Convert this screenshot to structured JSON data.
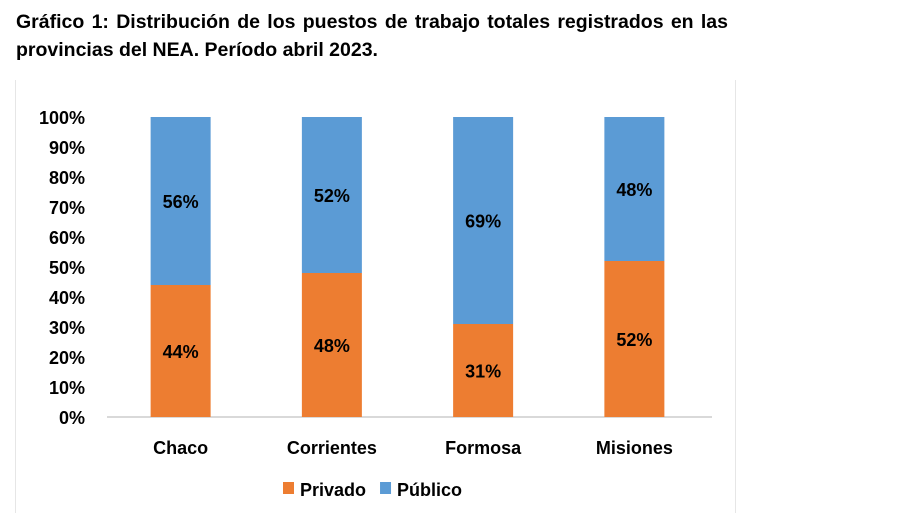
{
  "chart_data": {
    "type": "bar",
    "stacked": true,
    "title": "Gráfico 1: Distribución de los puestos de trabajo totales registrados en las provincias del NEA. Período abril 2023.",
    "categories": [
      "Chaco",
      "Corrientes",
      "Formosa",
      "Misiones"
    ],
    "series": [
      {
        "name": "Privado",
        "color": "#ED7D31",
        "values": [
          44,
          48,
          31,
          52
        ],
        "labels": [
          "44%",
          "48%",
          "31%",
          "52%"
        ]
      },
      {
        "name": "Público",
        "color": "#5B9BD5",
        "values": [
          56,
          52,
          69,
          48
        ],
        "labels": [
          "56%",
          "52%",
          "69%",
          "48%"
        ]
      }
    ],
    "ylim": [
      0,
      100
    ],
    "yticks": [
      "0%",
      "10%",
      "20%",
      "30%",
      "40%",
      "50%",
      "60%",
      "70%",
      "80%",
      "90%",
      "100%"
    ],
    "xlabel": "",
    "ylabel": "",
    "grid": false,
    "legend": "bottom"
  }
}
